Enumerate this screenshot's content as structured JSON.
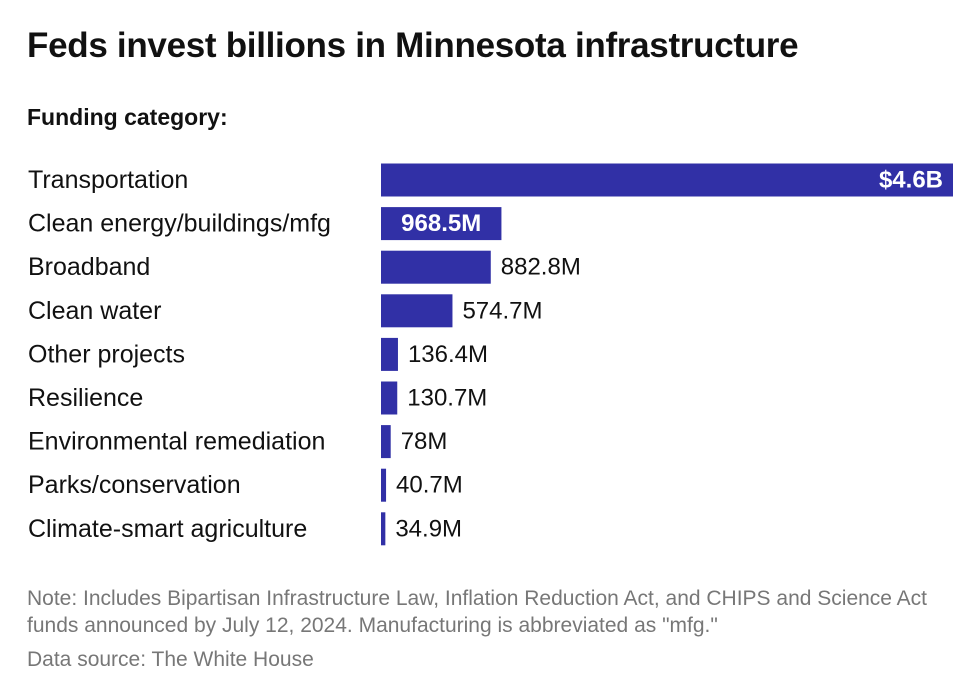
{
  "header": {
    "title": "Feds invest billions in Minnesota infrastructure",
    "subtitle": "Funding category:"
  },
  "footer": {
    "note": "Note: Includes Bipartisan Infrastructure Law, Inflation Reduction Act, and CHIPS and Science Act funds announced by July 12, 2024. Manufacturing is abbreviated as \"mfg.\"",
    "source": "Data source: The White House"
  },
  "colors": {
    "bar": "#3130a6",
    "text": "#111111",
    "muted": "#777777"
  },
  "chart_data": {
    "type": "bar",
    "orientation": "horizontal",
    "title": "Feds invest billions in Minnesota infrastructure",
    "ylabel": "Funding category:",
    "categories": [
      "Transportation",
      "Clean energy/buildings/mfg",
      "Broadband",
      "Clean water",
      "Other projects",
      "Resilience",
      "Environmental remediation",
      "Parks/conservation",
      "Climate-smart agriculture"
    ],
    "values": [
      4600,
      968.5,
      882.8,
      574.7,
      136.4,
      130.7,
      78,
      40.7,
      34.9
    ],
    "value_unit": "millions of dollars",
    "data_labels": [
      "$4.6B",
      "968.5M",
      "882.8M",
      "574.7M",
      "136.4M",
      "130.7M",
      "78M",
      "40.7M",
      "34.9M"
    ],
    "grid": false,
    "legend": "none"
  }
}
